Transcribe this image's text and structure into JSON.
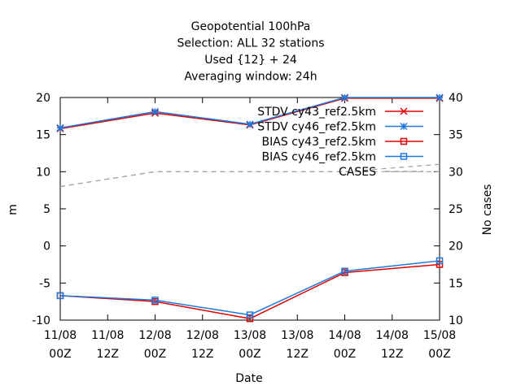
{
  "chart_data": {
    "type": "line",
    "title_lines": [
      "Geopotential 100hPa",
      "Selection: ALL      32 stations",
      "Used {12} + 24",
      "Averaging window: 24h"
    ],
    "xlabel": "Date",
    "ylabel": "m",
    "y2label": "No cases",
    "ylim": [
      -10,
      20
    ],
    "y2lim": [
      10,
      40
    ],
    "x_ticks": [
      {
        "day": "11/08",
        "hour": "00Z"
      },
      {
        "day": "11/08",
        "hour": "12Z"
      },
      {
        "day": "12/08",
        "hour": "00Z"
      },
      {
        "day": "12/08",
        "hour": "12Z"
      },
      {
        "day": "13/08",
        "hour": "00Z"
      },
      {
        "day": "13/08",
        "hour": "12Z"
      },
      {
        "day": "14/08",
        "hour": "00Z"
      },
      {
        "day": "14/08",
        "hour": "12Z"
      },
      {
        "day": "15/08",
        "hour": "00Z"
      }
    ],
    "y_ticks": [
      "20",
      "15",
      "10",
      "5",
      "0",
      "-5",
      "-10"
    ],
    "y2_ticks": [
      "40",
      "35",
      "30",
      "25",
      "20",
      "15",
      "10"
    ],
    "legend_position": "top-right",
    "series": [
      {
        "name": "STDV cy43_ref2.5km",
        "color": "#e00000",
        "marker": "x",
        "axis": "y",
        "points": [
          [
            0,
            15.8
          ],
          [
            2,
            17.9
          ],
          [
            4,
            16.3
          ],
          [
            6,
            19.9
          ],
          [
            8,
            19.9
          ]
        ]
      },
      {
        "name": "STDV cy46_ref2.5km",
        "color": "#1e78dc",
        "marker": "star",
        "axis": "y",
        "points": [
          [
            0,
            15.9
          ],
          [
            2,
            18.1
          ],
          [
            4,
            16.4
          ],
          [
            6,
            20.0
          ],
          [
            8,
            20.0
          ]
        ]
      },
      {
        "name": "BIAS cy43_ref2.5km",
        "color": "#e00000",
        "marker": "square",
        "axis": "y",
        "points": [
          [
            0,
            -6.7
          ],
          [
            2,
            -7.5
          ],
          [
            4,
            -9.8
          ],
          [
            6,
            -3.6
          ],
          [
            8,
            -2.5
          ]
        ]
      },
      {
        "name": "BIAS cy46_ref2.5km",
        "color": "#1e78dc",
        "marker": "square",
        "axis": "y",
        "points": [
          [
            0,
            -6.7
          ],
          [
            2,
            -7.3
          ],
          [
            4,
            -9.3
          ],
          [
            6,
            -3.4
          ],
          [
            8,
            -2.0
          ]
        ]
      },
      {
        "name": "CASES",
        "color": "#a0a0a0",
        "marker": "none",
        "dashed": true,
        "axis": "y2",
        "points": [
          [
            0,
            28
          ],
          [
            2,
            30
          ],
          [
            4,
            30
          ],
          [
            6,
            30
          ],
          [
            8,
            31
          ]
        ]
      },
      {
        "name": "",
        "color": "#a0a0a0",
        "marker": "none",
        "dashed": true,
        "axis": "y2",
        "points": [
          [
            0,
            28
          ],
          [
            2,
            30
          ],
          [
            4,
            30
          ],
          [
            6,
            30
          ],
          [
            8,
            30
          ]
        ]
      }
    ]
  }
}
